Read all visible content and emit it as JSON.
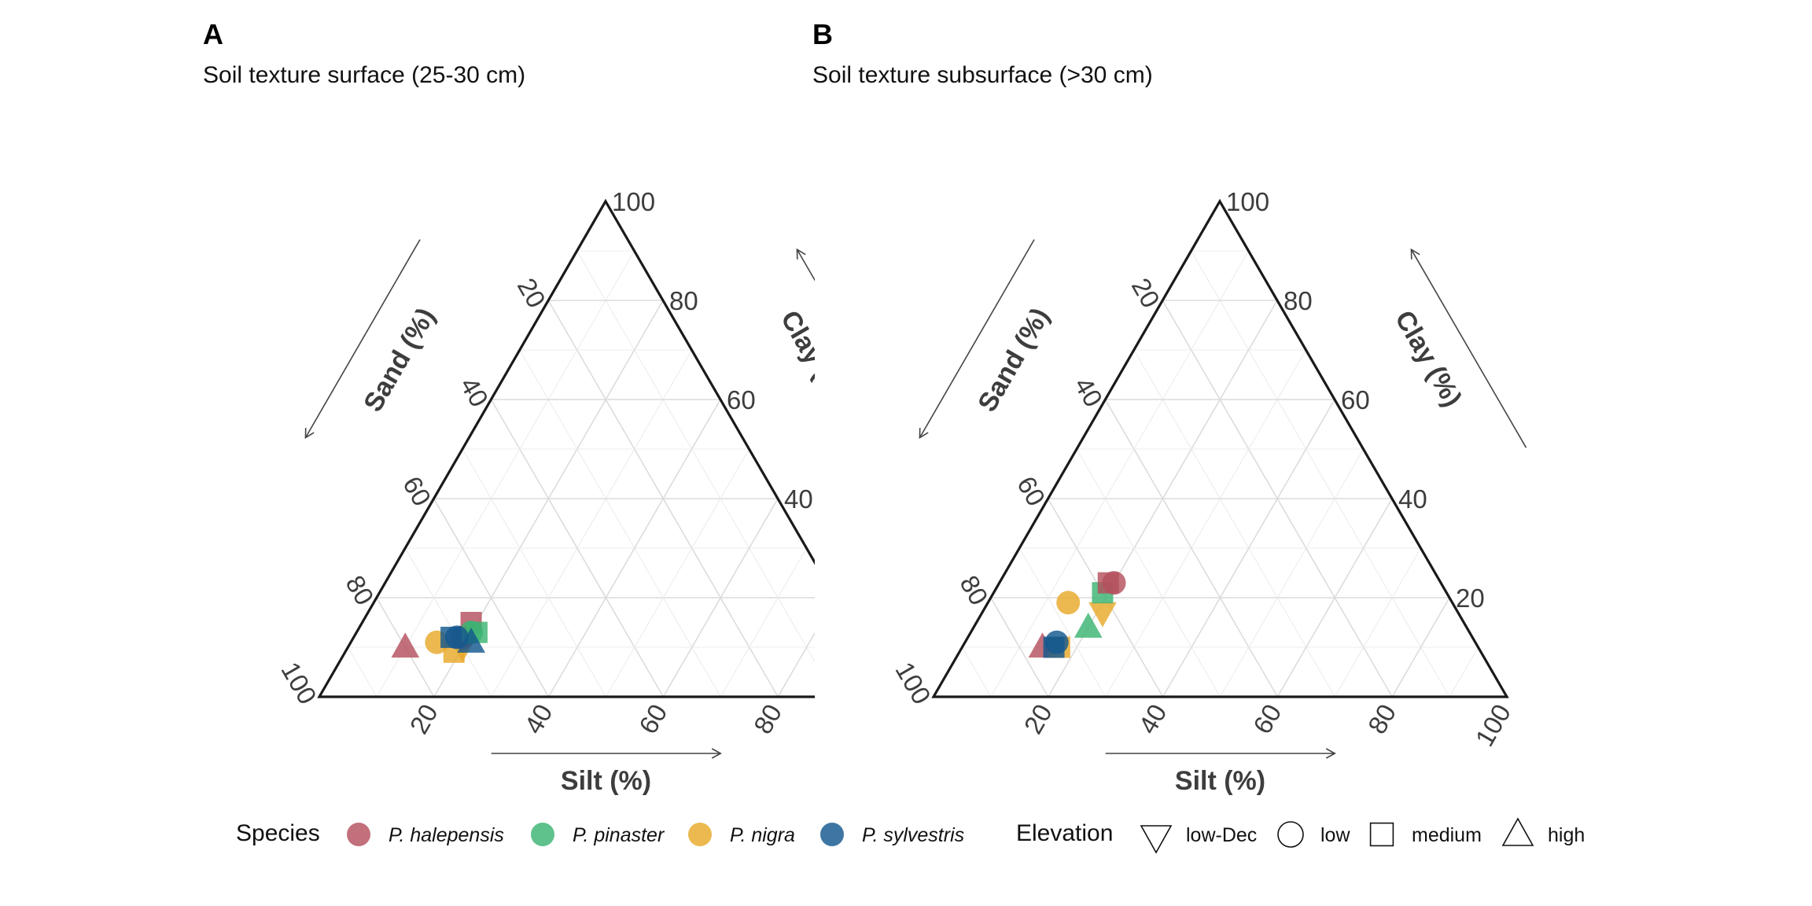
{
  "chart_data": [
    {
      "type": "ternary-scatter",
      "panel_letter": "A",
      "title": "Soil texture surface (25-30 cm)",
      "axes": {
        "left": {
          "label": "Sand (%)",
          "ticks": [
            "20",
            "40",
            "60",
            "80",
            "100"
          ]
        },
        "bottom": {
          "label": "Silt (%)",
          "ticks": [
            "20",
            "40",
            "60",
            "80"
          ]
        },
        "right": {
          "label": "Clay (%)",
          "ticks": [
            "100",
            "80",
            "60",
            "40"
          ]
        }
      },
      "range": [
        0,
        100
      ],
      "clipped_right": true,
      "points": [
        {
          "sand": 80,
          "silt": 10,
          "clay": 10,
          "species": "P. halepensis",
          "elevation": "high"
        },
        {
          "sand": 74,
          "silt": 15,
          "clay": 11,
          "species": "P. nigra",
          "elevation": "low"
        },
        {
          "sand": 72,
          "silt": 19,
          "clay": 9,
          "species": "P. nigra",
          "elevation": "medium"
        },
        {
          "sand": 70,
          "silt": 20,
          "clay": 10,
          "species": "P. nigra",
          "elevation": "low-Dec"
        },
        {
          "sand": 69,
          "silt": 19,
          "clay": 12,
          "species": "P. halepensis",
          "elevation": "low"
        },
        {
          "sand": 66,
          "silt": 19,
          "clay": 15,
          "species": "P. halepensis",
          "elevation": "medium"
        },
        {
          "sand": 66,
          "silt": 21,
          "clay": 13,
          "species": "P. pinaster",
          "elevation": "medium"
        },
        {
          "sand": 67,
          "silt": 20,
          "clay": 13,
          "species": "P. pinaster",
          "elevation": "low"
        },
        {
          "sand": 70,
          "silt": 18,
          "clay": 12,
          "species": "P. sylvestris",
          "elevation": "low"
        },
        {
          "sand": 71,
          "silt": 17,
          "clay": 12,
          "species": "P. sylvestris",
          "elevation": "medium"
        },
        {
          "sand": 68,
          "silt": 21,
          "clay": 11,
          "species": "P. sylvestris",
          "elevation": "high"
        }
      ]
    },
    {
      "type": "ternary-scatter",
      "panel_letter": "B",
      "title": "Soil texture subsurface (>30 cm)",
      "axes": {
        "left": {
          "label": "Sand (%)",
          "ticks": [
            "20",
            "40",
            "60",
            "80",
            "100"
          ]
        },
        "bottom": {
          "label": "Silt (%)",
          "ticks": [
            "20",
            "40",
            "60",
            "80",
            "100"
          ]
        },
        "right": {
          "label": "Clay (%)",
          "ticks": [
            "100",
            "80",
            "60",
            "40",
            "20"
          ]
        }
      },
      "range": [
        0,
        100
      ],
      "clipped_right": false,
      "points": [
        {
          "sand": 76,
          "silt": 14,
          "clay": 10,
          "species": "P. halepensis",
          "elevation": "high"
        },
        {
          "sand": 73,
          "silt": 17,
          "clay": 10,
          "species": "P. nigra",
          "elevation": "medium"
        },
        {
          "sand": 67,
          "silt": 14,
          "clay": 19,
          "species": "P. nigra",
          "elevation": "low"
        },
        {
          "sand": 62,
          "silt": 21,
          "clay": 17,
          "species": "P. nigra",
          "elevation": "low-Dec"
        },
        {
          "sand": 60,
          "silt": 19,
          "clay": 21,
          "species": "P. pinaster",
          "elevation": "medium"
        },
        {
          "sand": 58,
          "silt": 19,
          "clay": 23,
          "species": "P. halepensis",
          "elevation": "medium"
        },
        {
          "sand": 57,
          "silt": 20,
          "clay": 23,
          "species": "P. halepensis",
          "elevation": "low"
        },
        {
          "sand": 66,
          "silt": 20,
          "clay": 14,
          "species": "P. pinaster",
          "elevation": "high"
        },
        {
          "sand": 73,
          "silt": 16,
          "clay": 11,
          "species": "P. sylvestris",
          "elevation": "low"
        },
        {
          "sand": 74,
          "silt": 16,
          "clay": 10,
          "species": "P. sylvestris",
          "elevation": "medium"
        }
      ]
    }
  ],
  "legend": {
    "species_title": "Species",
    "species": [
      {
        "name": "P. halepensis",
        "color": "#b5505e"
      },
      {
        "name": "P. pinaster",
        "color": "#3cb371"
      },
      {
        "name": "P. nigra",
        "color": "#e8a92a"
      },
      {
        "name": "P. sylvestris",
        "color": "#14588f"
      }
    ],
    "elevation_title": "Elevation",
    "elevations": [
      {
        "name": "low-Dec",
        "shape": "triangle-down"
      },
      {
        "name": "low",
        "shape": "circle"
      },
      {
        "name": "medium",
        "shape": "square"
      },
      {
        "name": "high",
        "shape": "triangle-up"
      }
    ]
  }
}
